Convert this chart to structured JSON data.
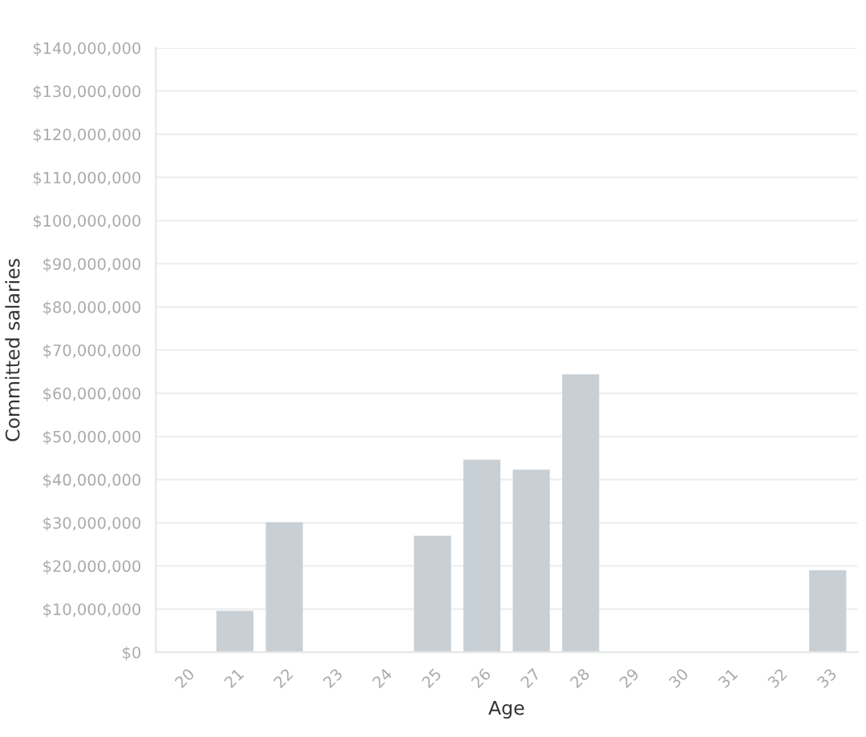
{
  "chart_data": {
    "type": "bar",
    "xlabel": "Age",
    "ylabel": "Committed salaries",
    "categories": [
      "20",
      "21",
      "22",
      "23",
      "24",
      "25",
      "26",
      "27",
      "28",
      "29",
      "30",
      "31",
      "32",
      "33"
    ],
    "values": [
      null,
      9600000,
      30100000,
      null,
      null,
      27000000,
      44600000,
      42300000,
      64400000,
      null,
      null,
      null,
      null,
      19000000
    ],
    "color": "#c8d0d6",
    "ylim": [
      0,
      140000000
    ],
    "yticks": [
      {
        "value": 0,
        "label": "$0"
      },
      {
        "value": 10000000,
        "label": "$10,000,000"
      },
      {
        "value": 20000000,
        "label": "$20,000,000"
      },
      {
        "value": 30000000,
        "label": "$30,000,000"
      },
      {
        "value": 40000000,
        "label": "$40,000,000"
      },
      {
        "value": 50000000,
        "label": "$50,000,000"
      },
      {
        "value": 60000000,
        "label": "$60,000,000"
      },
      {
        "value": 70000000,
        "label": "$70,000,000"
      },
      {
        "value": 80000000,
        "label": "$80,000,000"
      },
      {
        "value": 90000000,
        "label": "$90,000,000"
      },
      {
        "value": 100000000,
        "label": "$100,000,000"
      },
      {
        "value": 110000000,
        "label": "$110,000,000"
      },
      {
        "value": 120000000,
        "label": "$120,000,000"
      },
      {
        "value": 130000000,
        "label": "$130,000,000"
      },
      {
        "value": 140000000,
        "label": "$140,000,000"
      }
    ],
    "grid": "y"
  }
}
